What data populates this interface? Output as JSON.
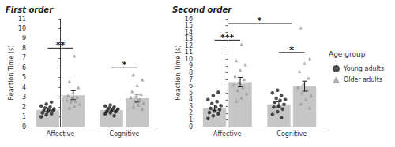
{
  "chart_data": [
    {
      "type": "bar",
      "title": "First order",
      "y_label": "Reaction Time (s)",
      "categories": [
        "Affective",
        "Cognitive"
      ],
      "color": "#c6c6c6",
      "grid": false,
      "ylim": [
        0,
        11
      ],
      "yticks": [
        0,
        1,
        2,
        3,
        4,
        5,
        6,
        7,
        8,
        9,
        10
      ],
      "series": [
        {
          "name": "Young adults",
          "color": "#1e1e1e",
          "marker": "circle",
          "values": [
            1.7,
            1.7
          ],
          "errors": [
            0.2,
            0.2
          ],
          "points": [
            [
              1.0,
              1.2,
              1.3,
              1.4,
              1.5,
              1.6,
              1.6,
              1.7,
              1.8,
              1.9,
              2.0,
              2.1,
              2.3,
              2.5
            ],
            [
              1.1,
              1.3,
              1.4,
              1.5,
              1.5,
              1.6,
              1.6,
              1.7,
              1.8,
              1.8,
              1.9,
              2.0,
              2.1,
              2.2
            ]
          ]
        },
        {
          "name": "Older adults",
          "color": "#9a9a9a",
          "marker": "triangle",
          "values": [
            3.2,
            2.9
          ],
          "errors": [
            0.45,
            0.4
          ],
          "points": [
            [
              1.9,
              2.1,
              2.3,
              2.5,
              2.6,
              2.7,
              2.9,
              3.0,
              3.2,
              3.5,
              4.0,
              4.6,
              7.2
            ],
            [
              1.8,
              2.0,
              2.2,
              2.4,
              2.6,
              2.8,
              3.0,
              3.1,
              3.3,
              3.6,
              4.2,
              4.8,
              5.3
            ]
          ]
        }
      ],
      "annotations": [
        {
          "text": "**",
          "between": [
            "Affective"
          ],
          "y": 8.0
        },
        {
          "text": "*",
          "between": [
            "Cognitive"
          ],
          "y": 6.0
        }
      ]
    },
    {
      "type": "bar",
      "title": "Second order",
      "y_label": "Reaction Time (s)",
      "categories": [
        "Affective",
        "Cognitive"
      ],
      "color": "#c6c6c6",
      "grid": false,
      "ylim": [
        0,
        16
      ],
      "yticks": [
        0,
        1,
        2,
        3,
        4,
        5,
        6,
        7,
        8,
        9,
        10,
        11,
        12,
        13,
        14,
        15
      ],
      "legend": "right",
      "legend_title": "Age group",
      "series": [
        {
          "name": "Young adults",
          "color": "#1e1e1e",
          "marker": "circle",
          "values": [
            2.8,
            3.3
          ],
          "errors": [
            0.4,
            0.4
          ],
          "points": [
            [
              1.2,
              1.6,
              1.9,
              2.1,
              2.3,
              2.5,
              2.7,
              2.9,
              3.1,
              3.4,
              3.7,
              4.0,
              4.6,
              5.1
            ],
            [
              1.3,
              1.8,
              2.2,
              2.6,
              2.9,
              3.1,
              3.3,
              3.6,
              3.9,
              4.0,
              4.2,
              4.6,
              5.0,
              5.4
            ]
          ]
        },
        {
          "name": "Older adults",
          "color": "#9a9a9a",
          "marker": "triangle",
          "values": [
            6.6,
            6.0
          ],
          "errors": [
            0.7,
            0.75
          ],
          "points": [
            [
              3.8,
              4.3,
              4.9,
              5.4,
              5.8,
              6.2,
              6.6,
              7.0,
              7.5,
              8.4,
              9.2,
              9.8,
              12.2
            ],
            [
              2.8,
              3.4,
              4.0,
              4.6,
              5.0,
              5.4,
              5.8,
              6.3,
              7.2,
              8.2,
              9.4,
              10.1,
              14.7
            ]
          ]
        }
      ],
      "annotations": [
        {
          "text": "***",
          "between": [
            "Affective"
          ],
          "y": 12.8
        },
        {
          "text": "*",
          "between": [
            "Cognitive"
          ],
          "y": 11.0
        },
        {
          "text": "*",
          "between": [
            "Affective",
            "Cognitive"
          ],
          "y": 15.3
        }
      ]
    }
  ]
}
